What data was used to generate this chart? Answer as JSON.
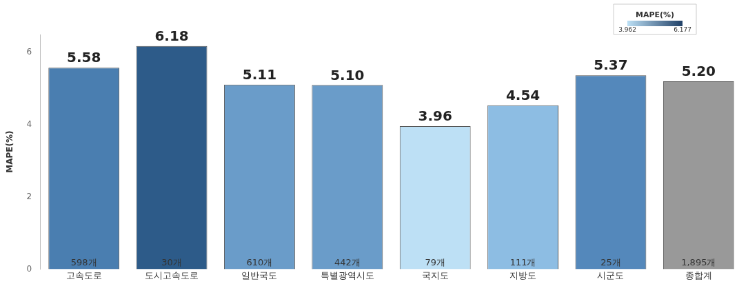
{
  "chart_data": {
    "type": "bar",
    "ylabel": "MAPE(%)",
    "categories": [
      "고속도로",
      "도시고속도로",
      "일반국도",
      "특별광역시도",
      "국지도",
      "지방도",
      "시군도",
      "종합계"
    ],
    "values": [
      5.58,
      6.18,
      5.11,
      5.1,
      3.96,
      4.54,
      5.37,
      5.2
    ],
    "colors": [
      "#4a7eb0",
      "#2d5b89",
      "#6a9cc9",
      "#6a9cc9",
      "#bde0f5",
      "#8dbde3",
      "#5488bb",
      "#999999"
    ],
    "value_labels": [
      "5.58",
      "6.18",
      "5.11",
      "5.10",
      "3.96",
      "4.54",
      "5.37",
      "5.20"
    ],
    "ylim": [
      0,
      6.5
    ],
    "yticks": [
      0,
      2,
      4,
      6
    ],
    "grid": false,
    "legend": false,
    "clabel": "MAPE(%)",
    "clim": [
      3.962,
      6.177
    ],
    "cticks": [
      3.962,
      6.177
    ],
    "annotations": [
      {
        "text": "598개",
        "x": "고속도로",
        "y": 0
      },
      {
        "text": "30개",
        "x": "도시고속도로",
        "y": 0
      },
      {
        "text": "610개",
        "x": "일반국도",
        "y": 0
      },
      {
        "text": "442개",
        "x": "특별광역시도",
        "y": 0
      },
      {
        "text": "79개",
        "x": "국지도",
        "y": 0
      },
      {
        "text": "111개",
        "x": "지방도",
        "y": 0
      },
      {
        "text": "25개",
        "x": "시군도",
        "y": 0
      },
      {
        "text": "1,895개",
        "x": "종합계",
        "y": 0
      }
    ]
  }
}
